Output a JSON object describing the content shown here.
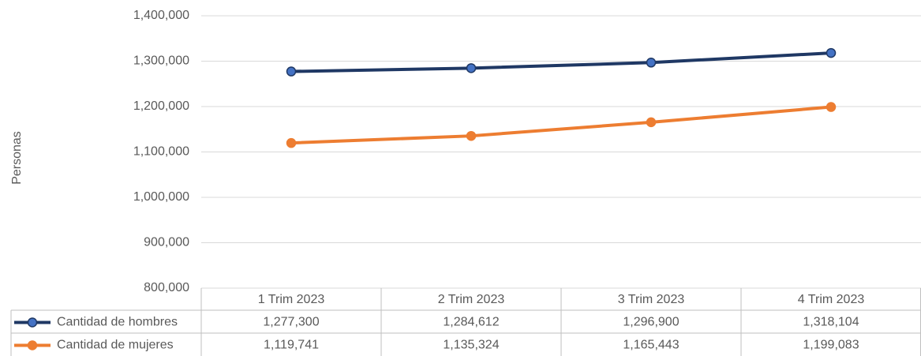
{
  "chart_data": {
    "type": "line",
    "y_label": "Personas",
    "categories": [
      "1 Trim 2023",
      "2 Trim 2023",
      "3 Trim 2023",
      "4 Trim 2023"
    ],
    "series": [
      {
        "name": "Cantidad de hombres",
        "color": "#1f3864",
        "marker_color": "#4472c4",
        "values": [
          1277300,
          1284612,
          1296900,
          1318104
        ],
        "value_labels": [
          "1,277,300",
          "1,284,612",
          "1,296,900",
          "1,318,104"
        ]
      },
      {
        "name": "Cantidad de mujeres",
        "color": "#ed7d31",
        "marker_color": "#ed7d31",
        "values": [
          1119741,
          1135324,
          1165443,
          1199083
        ],
        "value_labels": [
          "1,119,741",
          "1,135,324",
          "1,165,443",
          "1,199,083"
        ]
      }
    ],
    "ylim": [
      800000,
      1400000
    ],
    "yticks": [
      {
        "value": 800000,
        "label": "800,000"
      },
      {
        "value": 900000,
        "label": "900,000"
      },
      {
        "value": 1000000,
        "label": "1,000,000"
      },
      {
        "value": 1100000,
        "label": "1,100,000"
      },
      {
        "value": 1200000,
        "label": "1,200,000"
      },
      {
        "value": 1300000,
        "label": "1,300,000"
      },
      {
        "value": 1400000,
        "label": "1,400,000"
      }
    ],
    "grid": true
  }
}
